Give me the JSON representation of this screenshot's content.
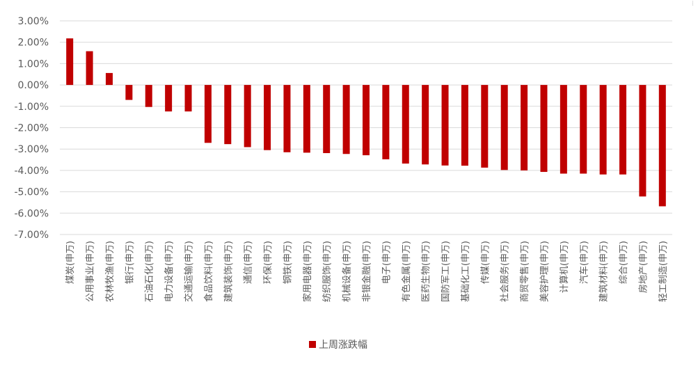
{
  "chart_data": {
    "type": "bar",
    "title": "",
    "xlabel": "",
    "ylabel": "",
    "ylim": [
      -7.0,
      3.0
    ],
    "ytick_step": 1.0,
    "grid": true,
    "legend_position": "bottom-center",
    "colors": {
      "bar": "#c00000",
      "grid": "#d9d9d9",
      "text": "#595959"
    },
    "categories": [
      "煤炭(申万)",
      "公用事业(申万)",
      "农林牧渔(申万)",
      "银行(申万)",
      "石油石化(申万)",
      "电力设备(申万)",
      "交通运输(申万)",
      "食品饮料(申万)",
      "建筑装饰(申万)",
      "通信(申万)",
      "环保(申万)",
      "钢铁(申万)",
      "家用电器(申万)",
      "纺织服饰(申万)",
      "机械设备(申万)",
      "非银金融(申万)",
      "电子(申万)",
      "有色金属(申万)",
      "医药生物(申万)",
      "国防军工(申万)",
      "基础化工(申万)",
      "传媒(申万)",
      "社会服务(申万)",
      "商贸零售(申万)",
      "美容护理(申万)",
      "计算机(申万)",
      "汽车(申万)",
      "建筑材料(申万)",
      "综合(申万)",
      "房地产(申万)",
      "轻工制造(申万)"
    ],
    "series": [
      {
        "name": "上周涨跌幅",
        "values": [
          2.18,
          1.58,
          0.56,
          -0.7,
          -1.03,
          -1.24,
          -1.24,
          -2.71,
          -2.77,
          -2.91,
          -3.05,
          -3.15,
          -3.17,
          -3.19,
          -3.23,
          -3.29,
          -3.48,
          -3.68,
          -3.72,
          -3.77,
          -3.78,
          -3.87,
          -3.98,
          -4.0,
          -4.07,
          -4.15,
          -4.15,
          -4.19,
          -4.19,
          -5.22,
          -5.68
        ]
      }
    ]
  },
  "legend": {
    "label": "上周涨跌幅"
  },
  "corner_mark": "⁞"
}
